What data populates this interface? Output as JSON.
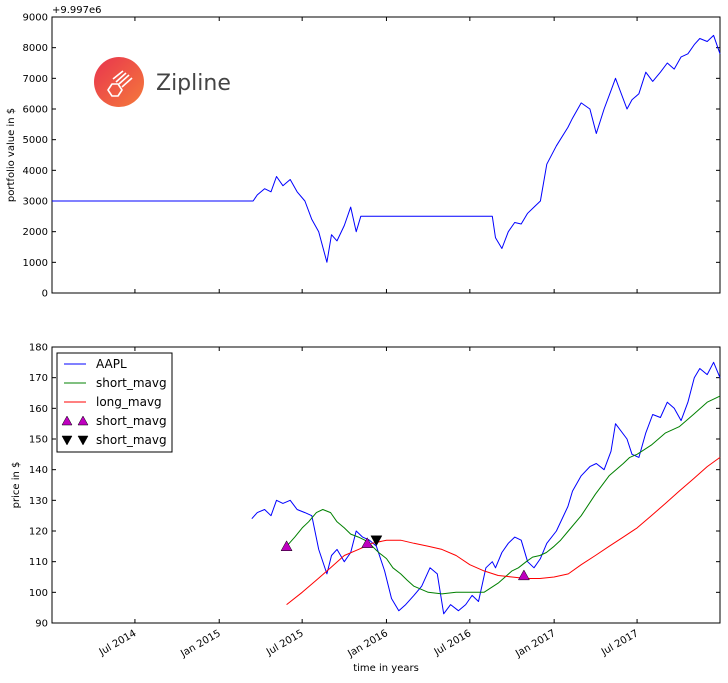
{
  "logo": {
    "text": "Zipline",
    "colors": [
      "#e8344e",
      "#f57a3b"
    ]
  },
  "chart_data": [
    {
      "type": "line",
      "offset_label": "+9.997e6",
      "xlabel": "",
      "ylabel": "portfolio value in $",
      "ylim": [
        0,
        9000
      ],
      "yticks": [
        0,
        1000,
        2000,
        3000,
        4000,
        5000,
        6000,
        7000,
        8000,
        9000
      ],
      "xlim": [
        "2014-01-01",
        "2017-12-29"
      ],
      "grid": false,
      "series": [
        {
          "color": "#0000ff",
          "x": [
            "2014-01-01",
            "2015-03-16",
            "2015-03-25",
            "2015-04-10",
            "2015-04-24",
            "2015-05-06",
            "2015-05-20",
            "2015-06-05",
            "2015-06-20",
            "2015-07-07",
            "2015-07-22",
            "2015-08-06",
            "2015-08-24",
            "2015-09-03",
            "2015-09-15",
            "2015-10-01",
            "2015-10-15",
            "2015-10-27",
            "2015-11-06",
            "2015-11-20",
            "2016-08-19",
            "2016-08-26",
            "2016-09-09",
            "2016-09-23",
            "2016-10-07",
            "2016-10-21",
            "2016-11-04",
            "2016-11-18",
            "2016-12-02",
            "2016-12-16",
            "2017-01-06",
            "2017-01-31",
            "2017-02-10",
            "2017-03-01",
            "2017-03-20",
            "2017-04-03",
            "2017-04-20",
            "2017-05-05",
            "2017-05-15",
            "2017-06-09",
            "2017-06-20",
            "2017-07-05",
            "2017-07-20",
            "2017-08-04",
            "2017-08-21",
            "2017-09-05",
            "2017-09-20",
            "2017-10-05",
            "2017-10-20",
            "2017-11-03",
            "2017-11-15",
            "2017-12-01",
            "2017-12-15",
            "2017-12-29"
          ],
          "y": [
            3000,
            3000,
            3200,
            3400,
            3300,
            3800,
            3500,
            3700,
            3300,
            3000,
            2400,
            2000,
            1000,
            1900,
            1700,
            2200,
            2800,
            2000,
            2500,
            2500,
            2500,
            1800,
            1450,
            2000,
            2300,
            2250,
            2600,
            2800,
            3000,
            4200,
            4800,
            5400,
            5700,
            6200,
            6000,
            5200,
            6000,
            6600,
            7000,
            6000,
            6300,
            6500,
            7200,
            6900,
            7200,
            7500,
            7300,
            7700,
            7800,
            8100,
            8300,
            8200,
            8400,
            7800
          ]
        }
      ]
    },
    {
      "type": "line",
      "xlabel": "time in years",
      "ylabel": "price in $",
      "ylim": [
        90,
        180
      ],
      "yticks": [
        90,
        100,
        110,
        120,
        130,
        140,
        150,
        160,
        170,
        180
      ],
      "xlim": [
        "2014-01-01",
        "2017-12-29"
      ],
      "xticks": [
        "2014-07-01",
        "2015-01-01",
        "2015-07-01",
        "2016-01-01",
        "2016-07-01",
        "2017-01-01",
        "2017-07-01"
      ],
      "xticklabels": [
        "Jul 2014",
        "Jan 2015",
        "Jul 2015",
        "Jan 2016",
        "Jul 2016",
        "Jan 2017",
        "Jul 2017"
      ],
      "grid": false,
      "legend_position": "upper-left",
      "legend": [
        {
          "label": "AAPL",
          "kind": "line",
          "color": "#0000ff"
        },
        {
          "label": "short_mavg",
          "kind": "line",
          "color": "#008000"
        },
        {
          "label": "long_mavg",
          "kind": "line",
          "color": "#ff0000"
        },
        {
          "label": "short_mavg",
          "kind": "triangle-up",
          "color": "#bf00bf"
        },
        {
          "label": "short_mavg",
          "kind": "triangle-down",
          "color": "#000000"
        }
      ],
      "series": [
        {
          "name": "AAPL",
          "color": "#0000ff",
          "x": [
            "2015-03-13",
            "2015-03-25",
            "2015-04-10",
            "2015-04-24",
            "2015-05-06",
            "2015-05-20",
            "2015-06-05",
            "2015-06-20",
            "2015-07-07",
            "2015-07-22",
            "2015-08-06",
            "2015-08-24",
            "2015-09-03",
            "2015-09-15",
            "2015-10-01",
            "2015-10-15",
            "2015-10-27",
            "2015-11-10",
            "2015-11-25",
            "2015-12-10",
            "2015-12-28",
            "2016-01-12",
            "2016-01-28",
            "2016-02-12",
            "2016-03-01",
            "2016-03-18",
            "2016-04-05",
            "2016-04-21",
            "2016-05-05",
            "2016-05-20",
            "2016-06-06",
            "2016-06-22",
            "2016-07-06",
            "2016-07-20",
            "2016-08-05",
            "2016-08-19",
            "2016-08-26",
            "2016-09-09",
            "2016-09-23",
            "2016-10-07",
            "2016-10-21",
            "2016-11-04",
            "2016-11-18",
            "2016-12-02",
            "2016-12-16",
            "2017-01-06",
            "2017-01-31",
            "2017-02-10",
            "2017-03-01",
            "2017-03-20",
            "2017-04-03",
            "2017-04-20",
            "2017-05-05",
            "2017-05-15",
            "2017-06-09",
            "2017-06-20",
            "2017-07-05",
            "2017-07-20",
            "2017-08-04",
            "2017-08-21",
            "2017-09-05",
            "2017-09-20",
            "2017-10-05",
            "2017-10-20",
            "2017-11-03",
            "2017-11-15",
            "2017-12-01",
            "2017-12-15",
            "2017-12-29"
          ],
          "y": [
            124,
            126,
            127,
            125,
            130,
            129,
            130,
            127,
            126,
            125,
            114,
            106,
            112,
            114,
            110,
            113,
            120,
            118,
            117,
            115,
            107,
            98,
            94,
            96,
            99,
            102,
            108,
            106,
            93,
            96,
            94,
            96,
            99,
            97,
            108,
            110,
            108,
            113,
            116,
            118,
            117,
            110,
            108,
            111,
            116,
            120,
            128,
            133,
            138,
            141,
            142,
            140,
            146,
            155,
            150,
            145,
            144,
            152,
            158,
            157,
            162,
            160,
            156,
            162,
            170,
            173,
            171,
            175,
            170
          ]
        },
        {
          "name": "short_mavg",
          "color": "#008000",
          "x": [
            "2015-05-28",
            "2015-06-15",
            "2015-07-01",
            "2015-07-15",
            "2015-08-01",
            "2015-08-15",
            "2015-09-01",
            "2015-09-15",
            "2015-10-01",
            "2015-10-15",
            "2015-11-01",
            "2015-11-15",
            "2015-12-01",
            "2015-12-15",
            "2016-01-01",
            "2016-01-15",
            "2016-02-01",
            "2016-02-15",
            "2016-03-01",
            "2016-04-01",
            "2016-05-01",
            "2016-06-01",
            "2016-07-01",
            "2016-08-01",
            "2016-09-01",
            "2016-10-01",
            "2016-10-15",
            "2016-11-01",
            "2016-11-15",
            "2016-12-01",
            "2016-12-15",
            "2017-01-01",
            "2017-01-15",
            "2017-02-01",
            "2017-03-01",
            "2017-04-01",
            "2017-05-01",
            "2017-06-01",
            "2017-06-15",
            "2017-07-01",
            "2017-08-01",
            "2017-09-01",
            "2017-10-01",
            "2017-11-01",
            "2017-12-01",
            "2017-12-29"
          ],
          "y": [
            115,
            118,
            121,
            123,
            126,
            127,
            126,
            123,
            121,
            119,
            118,
            117,
            115,
            113,
            111,
            108,
            106,
            104,
            102,
            100,
            99.5,
            100,
            100,
            100,
            103,
            107,
            108,
            110,
            111.5,
            112,
            113,
            115,
            117,
            120,
            125,
            132,
            138,
            142,
            144,
            145,
            148,
            152,
            154,
            158,
            162,
            164
          ]
        },
        {
          "name": "long_mavg",
          "color": "#ff0000",
          "x": [
            "2015-05-28",
            "2015-07-01",
            "2015-08-01",
            "2015-09-01",
            "2015-10-01",
            "2015-11-01",
            "2015-12-01",
            "2016-01-01",
            "2016-02-01",
            "2016-03-01",
            "2016-04-01",
            "2016-05-01",
            "2016-06-01",
            "2016-07-01",
            "2016-08-01",
            "2016-09-01",
            "2016-10-01",
            "2016-11-01",
            "2016-12-01",
            "2017-01-01",
            "2017-02-01",
            "2017-03-01",
            "2017-04-01",
            "2017-05-01",
            "2017-06-01",
            "2017-07-01",
            "2017-08-01",
            "2017-09-01",
            "2017-10-01",
            "2017-11-01",
            "2017-12-01",
            "2017-12-29"
          ],
          "y": [
            96,
            100,
            104,
            108,
            112,
            114,
            116,
            117,
            117,
            116,
            115,
            114,
            112,
            109,
            107,
            105.5,
            105,
            104.5,
            104.5,
            105,
            106,
            109,
            112,
            115,
            118,
            121,
            125,
            129,
            133,
            137,
            141,
            144
          ]
        }
      ],
      "markers": [
        {
          "kind": "triangle-up",
          "color": "#bf00bf",
          "points": [
            {
              "x": "2015-05-28",
              "y": 115
            },
            {
              "x": "2015-11-20",
              "y": 116
            },
            {
              "x": "2016-10-27",
              "y": 105.5
            }
          ]
        },
        {
          "kind": "triangle-down",
          "color": "#000000",
          "points": [
            {
              "x": "2015-12-10",
              "y": 117
            }
          ]
        }
      ]
    }
  ]
}
